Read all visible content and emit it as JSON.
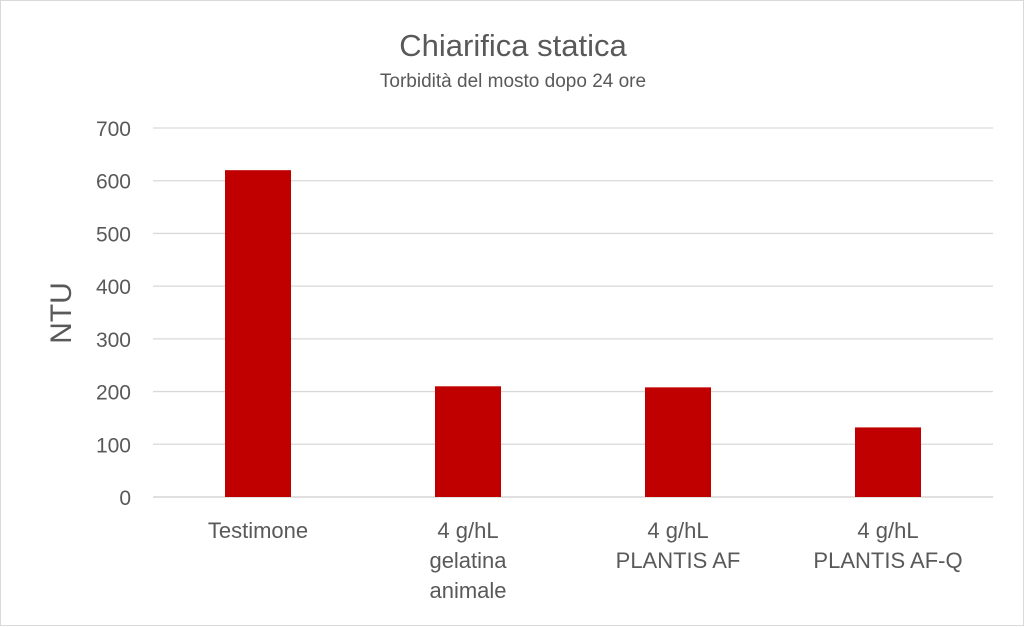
{
  "chart_data": {
    "type": "bar",
    "title": "Chiarifica statica",
    "subtitle": "Torbidità del mosto dopo 24 ore",
    "xlabel": "",
    "ylabel": "NTU",
    "ylim": [
      0,
      700
    ],
    "yticks": [
      0,
      100,
      200,
      300,
      400,
      500,
      600,
      700
    ],
    "grid": true,
    "categories": [
      [
        "Testimone"
      ],
      [
        "4 g/hL",
        "gelatina",
        "animale"
      ],
      [
        "4 g/hL",
        "PLANTIS AF"
      ],
      [
        "4 g/hL",
        "PLANTIS AF-Q"
      ]
    ],
    "values": [
      620,
      210,
      208,
      132
    ],
    "bar_color": "#c00000",
    "grid_color": "#d9d9d9",
    "text_color": "#595959"
  }
}
